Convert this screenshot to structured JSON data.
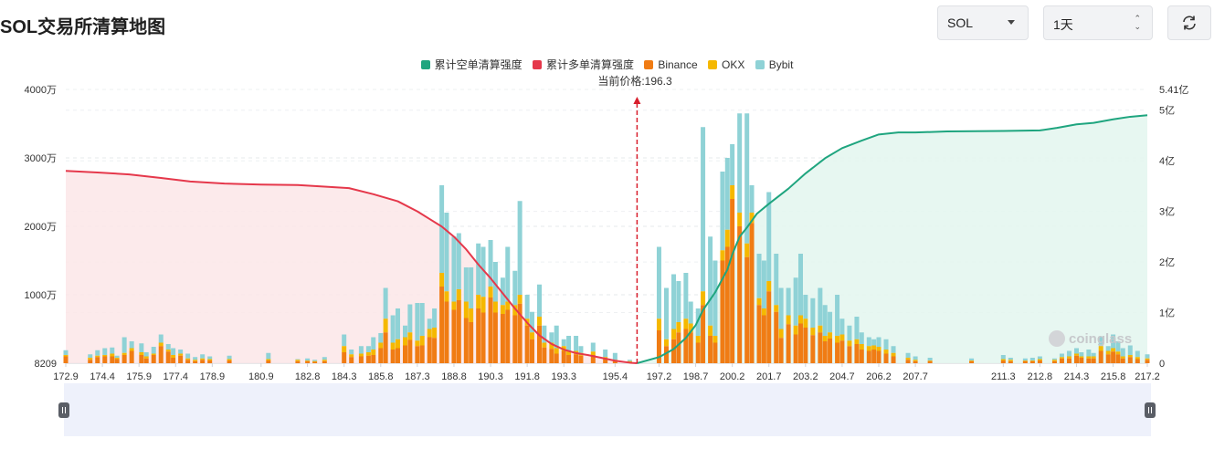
{
  "page_title": "SOL交易所清算地图",
  "controls": {
    "symbol": "SOL",
    "interval": "1天",
    "refresh_icon": "refresh-icon"
  },
  "watermark": "coinglass",
  "current_price_label": "当前价格:196.3",
  "colors": {
    "short_cum": "#1fa57f",
    "long_cum": "#e5384b",
    "binance": "#f07c14",
    "okx": "#f5b800",
    "bybit": "#8fd2d6",
    "short_fill": "#e3f6ef",
    "long_fill": "#fbe6e8",
    "slider_bg": "#eef1fb"
  },
  "chart_data": {
    "type": "bar",
    "current_price": 196.3,
    "legend": [
      "累计空单清算强度",
      "累计多单清算强度",
      "Binance",
      "OKX",
      "Bybit"
    ],
    "x_tick_labels": [
      "172.9",
      "174.4",
      "175.9",
      "177.4",
      "178.9",
      "180.9",
      "182.8",
      "184.3",
      "185.8",
      "187.3",
      "188.8",
      "190.3",
      "191.8",
      "193.3",
      "195.4",
      "197.2",
      "198.7",
      "200.2",
      "201.7",
      "203.2",
      "204.7",
      "206.2",
      "207.7",
      "211.3",
      "212.8",
      "214.3",
      "215.8",
      "217.2"
    ],
    "y_left_ticks": [
      {
        "value": 8209,
        "label": "8209"
      },
      {
        "value": 10000000,
        "label": "1000万"
      },
      {
        "value": 20000000,
        "label": "2000万"
      },
      {
        "value": 30000000,
        "label": "3000万"
      },
      {
        "value": 40000000,
        "label": "4000万"
      }
    ],
    "y_right_ticks": [
      {
        "value": 0,
        "label": "0"
      },
      {
        "value": 100000000,
        "label": "1亿"
      },
      {
        "value": 200000000,
        "label": "2亿"
      },
      {
        "value": 300000000,
        "label": "3亿"
      },
      {
        "value": 400000000,
        "label": "4亿"
      },
      {
        "value": 500000000,
        "label": "5亿"
      },
      {
        "value": 541000000,
        "label": "5.41亿"
      }
    ],
    "ylim_left": [
      0,
      40000000
    ],
    "ylim_right": [
      0,
      541000000
    ],
    "bars": [
      [
        172.9,
        1000000,
        1200000,
        0,
        1900000
      ],
      [
        173.9,
        500000,
        800000,
        0,
        1300000
      ],
      [
        174.2,
        900000,
        1100000,
        0,
        1900000
      ],
      [
        174.5,
        1000000,
        1200000,
        0,
        2200000
      ],
      [
        174.8,
        1000000,
        1400000,
        0,
        2300000
      ],
      [
        175.0,
        600000,
        800000,
        0,
        1100000
      ],
      [
        175.3,
        1200000,
        1500000,
        0,
        3800000
      ],
      [
        175.6,
        1800000,
        2200000,
        0,
        3200000
      ],
      [
        176.0,
        1200000,
        1600000,
        0,
        2900000
      ],
      [
        176.2,
        700000,
        1000000,
        0,
        1600000
      ],
      [
        176.5,
        1200000,
        1400000,
        0,
        2400000
      ],
      [
        176.8,
        2500000,
        3000000,
        0,
        4200000
      ],
      [
        177.1,
        1700000,
        2000000,
        0,
        2800000
      ],
      [
        177.3,
        800000,
        1200000,
        0,
        2200000
      ],
      [
        177.6,
        1100000,
        1400000,
        0,
        2000000
      ],
      [
        177.9,
        500000,
        700000,
        0,
        1400000
      ],
      [
        178.2,
        300000,
        500000,
        0,
        900000
      ],
      [
        178.5,
        500000,
        700000,
        0,
        1300000
      ],
      [
        178.8,
        400000,
        600000,
        0,
        1000000
      ],
      [
        179.6,
        400000,
        600000,
        0,
        1100000
      ],
      [
        181.2,
        400000,
        600000,
        0,
        1500000
      ],
      [
        182.4,
        300000,
        500000,
        0,
        600000
      ],
      [
        182.8,
        300000,
        400000,
        0,
        700000
      ],
      [
        183.1,
        200000,
        300000,
        0,
        500000
      ],
      [
        183.5,
        300000,
        500000,
        0,
        900000
      ],
      [
        184.3,
        1600000,
        2500000,
        0,
        4200000
      ],
      [
        184.6,
        900000,
        1300000,
        0,
        2000000
      ],
      [
        185.0,
        1000000,
        1400000,
        0,
        2500000
      ],
      [
        185.3,
        1100000,
        1600000,
        0,
        2500000
      ],
      [
        185.5,
        1200000,
        2000000,
        0,
        3800000
      ],
      [
        185.8,
        2200000,
        3000000,
        0,
        4400000
      ],
      [
        186.0,
        4500000,
        6500000,
        0,
        11000000
      ],
      [
        186.3,
        2000000,
        3000000,
        0,
        7000000
      ],
      [
        186.5,
        2200000,
        3500000,
        0,
        8000000
      ],
      [
        186.8,
        2600000,
        3800000,
        0,
        5500000
      ],
      [
        187.0,
        3400000,
        4500000,
        0,
        8600000
      ],
      [
        187.3,
        2500000,
        3300000,
        0,
        8800000
      ],
      [
        187.5,
        2600000,
        4000000,
        0,
        8800000
      ],
      [
        187.8,
        3800000,
        5000000,
        0,
        6500000
      ],
      [
        188.0,
        3700000,
        5200000,
        0,
        8000000
      ],
      [
        188.3,
        11200000,
        13200000,
        0,
        26000000
      ],
      [
        188.5,
        9000000,
        10500000,
        0,
        22000000
      ],
      [
        188.8,
        7800000,
        9000000,
        0,
        18500000
      ],
      [
        189.0,
        9200000,
        10800000,
        0,
        19000000
      ],
      [
        189.3,
        6600000,
        9000000,
        0,
        14000000
      ],
      [
        189.5,
        6000000,
        8000000,
        0,
        14000000
      ],
      [
        189.8,
        8000000,
        10000000,
        0,
        17500000
      ],
      [
        190.0,
        7400000,
        9700000,
        0,
        17000000
      ],
      [
        190.3,
        9600000,
        11200000,
        0,
        18000000
      ],
      [
        190.5,
        7400000,
        9000000,
        0,
        14800000
      ],
      [
        190.8,
        7200000,
        8500000,
        0,
        12500000
      ],
      [
        191.0,
        7800000,
        9000000,
        0,
        17000000
      ],
      [
        191.3,
        7000000,
        8500000,
        0,
        13500000
      ],
      [
        191.5,
        8700000,
        10000000,
        0,
        23700000
      ],
      [
        191.8,
        5500000,
        6500000,
        0,
        10000000
      ],
      [
        192.0,
        3500000,
        4500000,
        0,
        7500000
      ],
      [
        192.3,
        5500000,
        6800000,
        0,
        11500000
      ],
      [
        192.5,
        2300000,
        3000000,
        0,
        5500000
      ],
      [
        192.8,
        2100000,
        3000000,
        0,
        4500000
      ],
      [
        193.0,
        1400000,
        2200000,
        0,
        5500000
      ],
      [
        193.3,
        1800000,
        2500000,
        0,
        3500000
      ],
      [
        193.5,
        1200000,
        1800000,
        0,
        4000000
      ],
      [
        193.8,
        1300000,
        1800000,
        0,
        4000000
      ],
      [
        194.0,
        1100000,
        1500000,
        0,
        2500000
      ],
      [
        194.5,
        1200000,
        1700000,
        0,
        3000000
      ],
      [
        195.0,
        600000,
        900000,
        0,
        2000000
      ],
      [
        195.4,
        300000,
        500000,
        0,
        1500000
      ],
      [
        196.0,
        200000,
        300000,
        0,
        500000
      ],
      [
        197.2,
        4800000,
        6500000,
        0,
        17000000
      ],
      [
        197.5,
        2500000,
        3500000,
        0,
        11000000
      ],
      [
        197.8,
        3500000,
        5000000,
        0,
        13000000
      ],
      [
        198.0,
        4500000,
        6000000,
        0,
        12000000
      ],
      [
        198.3,
        5000000,
        6500000,
        0,
        13200000
      ],
      [
        198.5,
        4500000,
        5800000,
        0,
        9000000
      ],
      [
        198.8,
        3000000,
        4000000,
        0,
        8000000
      ],
      [
        199.0,
        8500000,
        10500000,
        0,
        34500000
      ],
      [
        199.3,
        4000000,
        5500000,
        0,
        18500000
      ],
      [
        199.5,
        3000000,
        4000000,
        0,
        15000000
      ],
      [
        199.8,
        15000000,
        16500000,
        0,
        28000000
      ],
      [
        200.0,
        17000000,
        19500000,
        0,
        30000000
      ],
      [
        200.2,
        24000000,
        26000000,
        0,
        32000000
      ],
      [
        200.5,
        20000000,
        22000000,
        0,
        36500000
      ],
      [
        200.8,
        15500000,
        17500000,
        0,
        36500000
      ],
      [
        201.0,
        20500000,
        22000000,
        0,
        26000000
      ],
      [
        201.3,
        8500000,
        9500000,
        0,
        16000000
      ],
      [
        201.5,
        7000000,
        8000000,
        0,
        15000000
      ],
      [
        201.7,
        10500000,
        12000000,
        0,
        25000000
      ],
      [
        202.0,
        7500000,
        8500000,
        0,
        16000000
      ],
      [
        202.2,
        3700000,
        5000000,
        0,
        11000000
      ],
      [
        202.5,
        5700000,
        7000000,
        0,
        11000000
      ],
      [
        202.8,
        4200000,
        5500000,
        0,
        12500000
      ],
      [
        203.0,
        5800000,
        7000000,
        0,
        16000000
      ],
      [
        203.2,
        5200000,
        6500000,
        0,
        10000000
      ],
      [
        203.5,
        4100000,
        5200000,
        0,
        9500000
      ],
      [
        203.8,
        4500000,
        5500000,
        0,
        11000000
      ],
      [
        204.0,
        3200000,
        4000000,
        0,
        8500000
      ],
      [
        204.2,
        3600000,
        4500000,
        0,
        7500000
      ],
      [
        204.5,
        3000000,
        4000000,
        0,
        10000000
      ],
      [
        204.7,
        3300000,
        4200000,
        0,
        6500000
      ],
      [
        205.0,
        2500000,
        3300000,
        0,
        5500000
      ],
      [
        205.3,
        2800000,
        3500000,
        0,
        6800000
      ],
      [
        205.5,
        2000000,
        2800000,
        0,
        4500000
      ],
      [
        205.8,
        1800000,
        2500000,
        0,
        3800000
      ],
      [
        206.0,
        2000000,
        2600000,
        0,
        3500000
      ],
      [
        206.2,
        1800000,
        2400000,
        0,
        3800000
      ],
      [
        206.5,
        1400000,
        2000000,
        0,
        3500000
      ],
      [
        206.8,
        1000000,
        1500000,
        0,
        2500000
      ],
      [
        207.4,
        500000,
        800000,
        0,
        1500000
      ],
      [
        207.7,
        300000,
        500000,
        0,
        1000000
      ],
      [
        208.3,
        300000,
        400000,
        0,
        800000
      ],
      [
        210.0,
        300000,
        400000,
        0,
        700000
      ],
      [
        211.3,
        400000,
        600000,
        0,
        1200000
      ],
      [
        211.6,
        300000,
        500000,
        0,
        800000
      ],
      [
        212.2,
        300000,
        400000,
        0,
        700000
      ],
      [
        212.5,
        300000,
        400000,
        0,
        800000
      ],
      [
        212.8,
        400000,
        600000,
        0,
        1000000
      ],
      [
        213.4,
        300000,
        500000,
        0,
        700000
      ],
      [
        213.7,
        700000,
        900000,
        0,
        1400000
      ],
      [
        214.0,
        700000,
        1000000,
        0,
        1800000
      ],
      [
        214.3,
        1100000,
        1400000,
        0,
        2200000
      ],
      [
        214.5,
        800000,
        1000000,
        0,
        1600000
      ],
      [
        214.8,
        700000,
        1000000,
        0,
        2000000
      ],
      [
        215.0,
        700000,
        1000000,
        0,
        1500000
      ],
      [
        215.3,
        1800000,
        2500000,
        0,
        3900000
      ],
      [
        215.6,
        1300000,
        1800000,
        0,
        2500000
      ],
      [
        215.8,
        1700000,
        2200000,
        0,
        4200000
      ],
      [
        216.0,
        1300000,
        1700000,
        0,
        3200000
      ],
      [
        216.2,
        700000,
        1000000,
        0,
        2200000
      ],
      [
        216.5,
        900000,
        1200000,
        0,
        2600000
      ],
      [
        216.8,
        600000,
        900000,
        0,
        1800000
      ],
      [
        217.2,
        500000,
        700000,
        0,
        1300000
      ]
    ],
    "bar_fields": [
      "price",
      "binance",
      "binance_plus_okx",
      "zero",
      "total"
    ],
    "series": [
      {
        "name": "累计多单清算强度",
        "axis": "right",
        "points": [
          [
            172.9,
            380000000
          ],
          [
            174.2,
            377000000
          ],
          [
            175.5,
            373000000
          ],
          [
            176.8,
            366000000
          ],
          [
            178.0,
            359000000
          ],
          [
            179.4,
            355000000
          ],
          [
            180.9,
            353000000
          ],
          [
            182.4,
            352000000
          ],
          [
            183.5,
            349000000
          ],
          [
            184.5,
            346000000
          ],
          [
            185.5,
            334000000
          ],
          [
            186.5,
            320000000
          ],
          [
            187.3,
            300000000
          ],
          [
            187.8,
            285000000
          ],
          [
            188.3,
            270000000
          ],
          [
            188.8,
            250000000
          ],
          [
            189.3,
            225000000
          ],
          [
            189.8,
            195000000
          ],
          [
            190.3,
            168000000
          ],
          [
            190.8,
            138000000
          ],
          [
            191.3,
            108000000
          ],
          [
            191.8,
            80000000
          ],
          [
            192.3,
            55000000
          ],
          [
            192.8,
            38000000
          ],
          [
            193.3,
            27000000
          ],
          [
            193.8,
            20000000
          ],
          [
            194.3,
            16000000
          ],
          [
            194.8,
            11000000
          ],
          [
            195.4,
            5000000
          ],
          [
            196.0,
            1000000
          ],
          [
            196.3,
            0
          ]
        ]
      },
      {
        "name": "累计空单清算强度",
        "axis": "right",
        "points": [
          [
            196.3,
            0
          ],
          [
            197.2,
            12000000
          ],
          [
            197.8,
            28000000
          ],
          [
            198.3,
            50000000
          ],
          [
            198.7,
            75000000
          ],
          [
            199.0,
            105000000
          ],
          [
            199.5,
            140000000
          ],
          [
            200.0,
            185000000
          ],
          [
            200.2,
            215000000
          ],
          [
            200.5,
            250000000
          ],
          [
            200.8,
            268000000
          ],
          [
            201.2,
            295000000
          ],
          [
            201.7,
            315000000
          ],
          [
            202.5,
            345000000
          ],
          [
            203.2,
            375000000
          ],
          [
            204.0,
            405000000
          ],
          [
            204.7,
            425000000
          ],
          [
            205.5,
            440000000
          ],
          [
            206.2,
            452000000
          ],
          [
            207.0,
            456000000
          ],
          [
            207.7,
            456000000
          ],
          [
            209.0,
            458000000
          ],
          [
            211.3,
            459000000
          ],
          [
            212.8,
            460000000
          ],
          [
            213.5,
            465000000
          ],
          [
            214.3,
            472000000
          ],
          [
            215.0,
            475000000
          ],
          [
            215.8,
            482000000
          ],
          [
            216.5,
            487000000
          ],
          [
            217.2,
            490000000
          ]
        ]
      }
    ]
  }
}
